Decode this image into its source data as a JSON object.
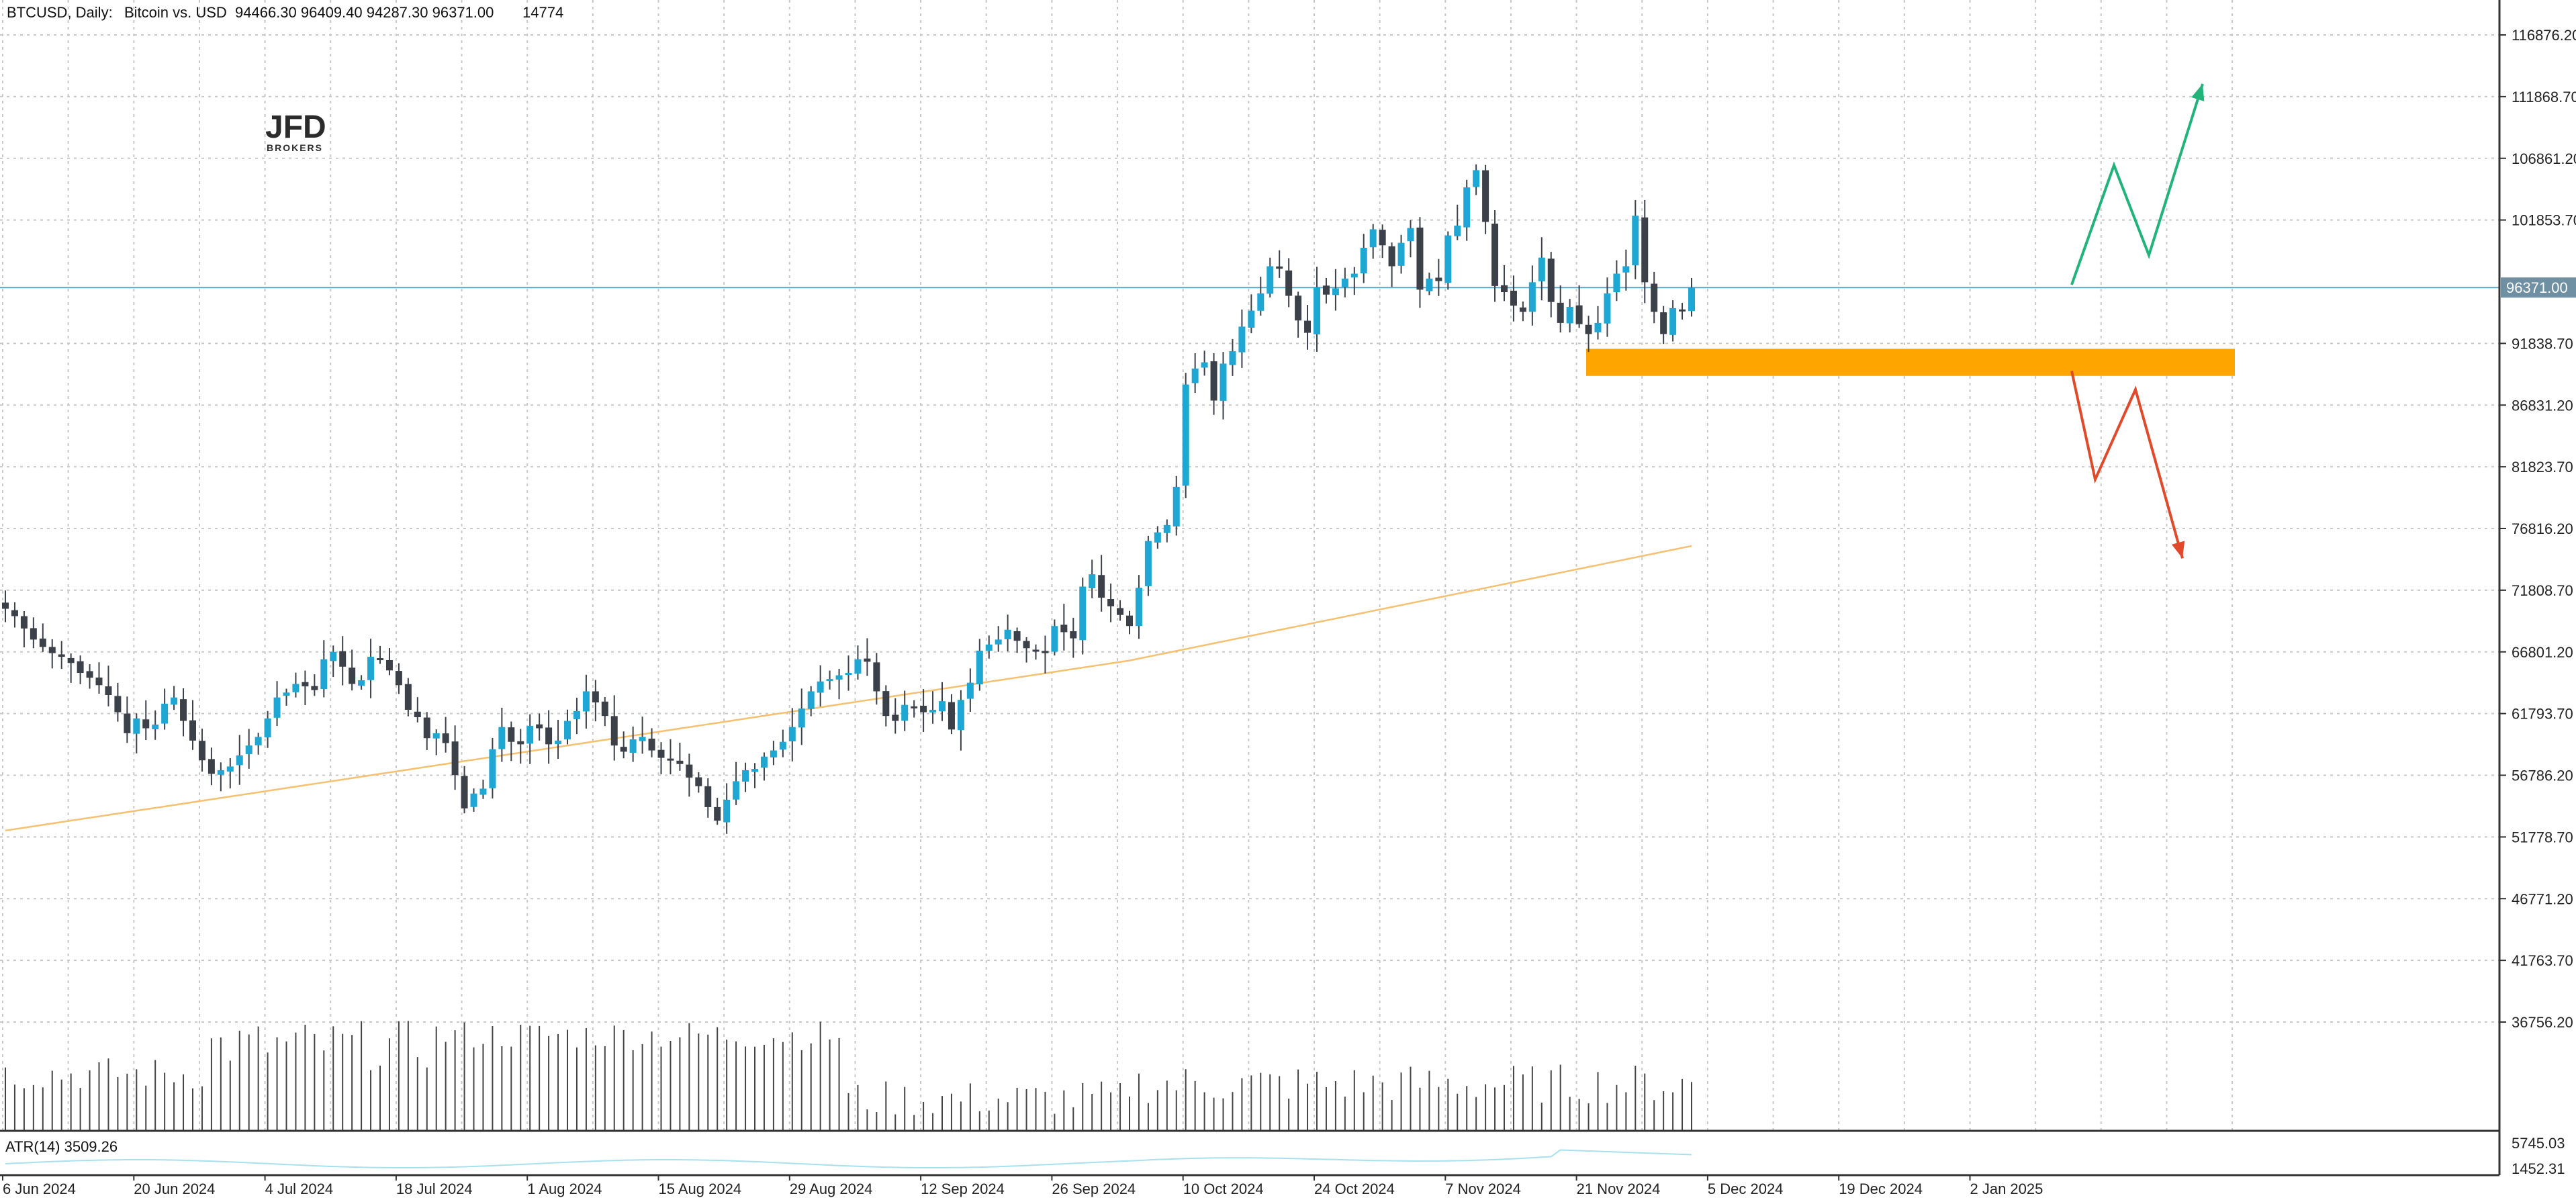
{
  "header": {
    "symbol": "BTCUSD, Daily:",
    "description": "Bitcoin vs. USD",
    "ohlc": "94466.30 96409.40 94287.30 96371.00",
    "volume": "14774"
  },
  "logo": {
    "main": "JFD",
    "sub": "BROKERS"
  },
  "indicator": {
    "label": "ATR(14) 3509.26"
  },
  "colors": {
    "bull": "#1ea7d2",
    "bear": "#3c4048",
    "ma": "#f5c070",
    "current_line": "#5aa7c8",
    "zone": "#ffa500",
    "up_arrow": "#22b37a",
    "down_arrow": "#e04a2a",
    "volume": "#444444",
    "atr": "#a8e0ee"
  },
  "chart_data": {
    "type": "candlestick",
    "title": "BTCUSD, Daily: Bitcoin vs. USD",
    "y_ticks": [
      "116876.20",
      "111868.70",
      "106861.20",
      "101853.70",
      "96371.00",
      "91838.70",
      "86831.20",
      "81823.70",
      "76816.20",
      "71808.70",
      "66801.20",
      "61793.70",
      "56786.20",
      "51778.70",
      "46771.20",
      "41763.70",
      "36756.20"
    ],
    "y_range": [
      34000,
      118500
    ],
    "x_tick_labels": [
      "6 Jun 2024",
      "20 Jun 2024",
      "4 Jul 2024",
      "18 Jul 2024",
      "1 Aug 2024",
      "15 Aug 2024",
      "29 Aug 2024",
      "12 Sep 2024",
      "26 Sep 2024",
      "10 Oct 2024",
      "24 Oct 2024",
      "7 Nov 2024",
      "21 Nov 2024",
      "5 Dec 2024",
      "19 Dec 2024",
      "2 Jan 2025"
    ],
    "x_tick_offsets": [
      0,
      14,
      28,
      42,
      56,
      70,
      84,
      98,
      112,
      126,
      140,
      154,
      168,
      182,
      196,
      210
    ],
    "current_price": 96371.0,
    "current_price_label": "96371.00",
    "support_zone": [
      89200,
      91400
    ],
    "closes": [
      70300,
      69700,
      68700,
      67800,
      67200,
      66700,
      66400,
      65900,
      65100,
      64700,
      64100,
      63300,
      61900,
      60200,
      61400,
      60600,
      60900,
      62600,
      63100,
      61200,
      59600,
      58000,
      56900,
      57200,
      57500,
      58400,
      59200,
      59900,
      61400,
      63100,
      63500,
      64200,
      64000,
      63700,
      66200,
      66800,
      65600,
      64200,
      64500,
      66400,
      66200,
      65300,
      64100,
      62100,
      61500,
      59800,
      60200,
      59400,
      56800,
      54100,
      55300,
      55700,
      58900,
      60700,
      59500,
      59300,
      60800,
      60600,
      59300,
      59600,
      61200,
      62000,
      63600,
      62700,
      61600,
      59200,
      58700,
      59700,
      59900,
      58800,
      58200,
      58000,
      57700,
      56600,
      55900,
      54200,
      53100,
      54800,
      56300,
      57200,
      57300,
      58300,
      58800,
      59500,
      60700,
      62200,
      63600,
      64400,
      64600,
      64900,
      65100,
      66200,
      66000,
      63600,
      61600,
      61200,
      62500,
      62300,
      61900,
      62100,
      62800,
      60500,
      62900,
      64300,
      66900,
      67400,
      67800,
      68600,
      67700,
      67100,
      66900,
      66700,
      68900,
      68400,
      67900,
      72100,
      73100,
      71200,
      70500,
      69800,
      68900,
      72000,
      75800,
      76500,
      77100,
      80200,
      88500,
      89800,
      90300,
      87200,
      90200,
      91200,
      93200,
      94500,
      95900,
      98100,
      97900,
      95700,
      93700,
      92700,
      96400,
      95800,
      96300,
      97100,
      97500,
      99600,
      101100,
      99800,
      98100,
      100000,
      101200,
      96200,
      97100,
      96900,
      100600,
      101400,
      104500,
      105900,
      101700,
      96500,
      96000,
      94900,
      94400,
      96800,
      98800,
      95200,
      93500,
      94800,
      93400,
      92600,
      93500,
      95900,
      97500,
      98100,
      102200,
      96800,
      94400,
      92600,
      94700,
      94466,
      96371
    ]
  }
}
